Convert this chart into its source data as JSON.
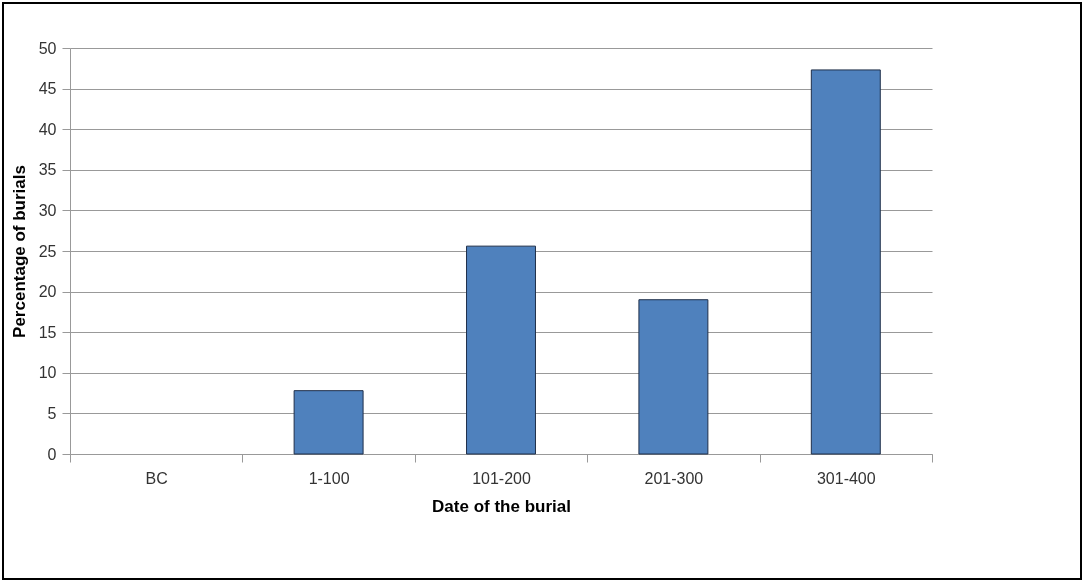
{
  "chart_data": {
    "type": "bar",
    "xlabel": "Date of the burial",
    "ylabel": "Percentage of burials",
    "categories": [
      "BC",
      "1-100",
      "101-200",
      "201-300",
      "301-400"
    ],
    "values": [
      0,
      7.8,
      25.6,
      19.0,
      47.3
    ],
    "color": "#4f81bd",
    "ylim": [
      0,
      50
    ],
    "yticks": [
      0,
      5,
      10,
      15,
      20,
      25,
      30,
      35,
      40,
      45,
      50
    ],
    "grid": "y"
  }
}
